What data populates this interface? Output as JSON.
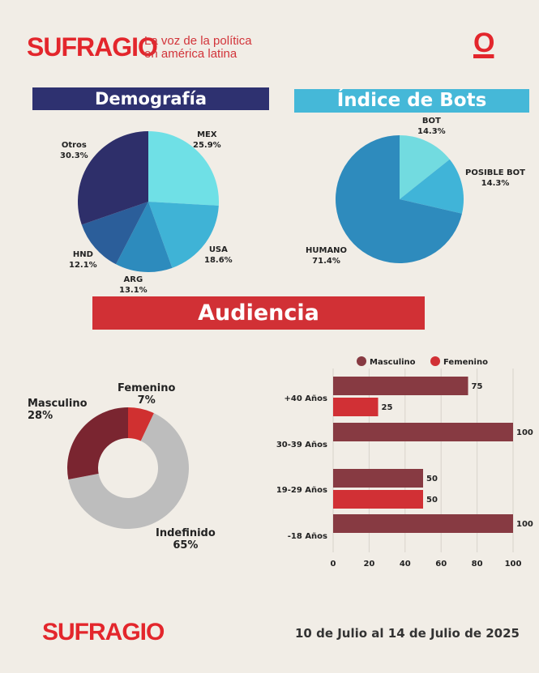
{
  "header": {
    "brand": "SUFRAGIO",
    "tagline_1": "La voz de la política",
    "tagline_2": "en américa latina",
    "mark": "O"
  },
  "footer": {
    "brand": "SUFRAGIO",
    "date": "10 de Julio al 14 de Julio de 2025"
  },
  "colors": {
    "red": "#e3262c",
    "navy": "#2e3170",
    "cyan": "#45b8d8",
    "masc": "#873a42",
    "fem": "#d13035"
  },
  "chart_data": [
    {
      "type": "pie",
      "title": "Demografía",
      "categories": [
        "MEX",
        "USA",
        "ARG",
        "HND",
        "Otros"
      ],
      "values": [
        25.9,
        18.6,
        13.1,
        12.1,
        30.3
      ],
      "labels": [
        "25.9%",
        "18.6%",
        "13.1%",
        "12.1%",
        "30.3%"
      ],
      "colors": [
        "#6fe0e6",
        "#3fb3d6",
        "#2d8bbd",
        "#2b5e9a",
        "#2e2f6a"
      ]
    },
    {
      "type": "pie",
      "title": "Índice de Bots",
      "categories": [
        "BOT",
        "POSIBLE BOT",
        "HUMANO"
      ],
      "values": [
        14.3,
        14.3,
        71.4
      ],
      "labels": [
        "14.3%",
        "14.3%",
        "71.4%"
      ],
      "colors": [
        "#72dbe0",
        "#40b4d8",
        "#2e8bbd"
      ]
    },
    {
      "type": "pie",
      "subtype": "donut",
      "title": "Audiencia",
      "categories": [
        "Femenino",
        "Indefinido",
        "Masculino"
      ],
      "values": [
        7,
        65,
        28
      ],
      "labels": [
        "7%",
        "65%",
        "28%"
      ],
      "colors": [
        "#d03030",
        "#bdbdbd",
        "#7a2530"
      ]
    },
    {
      "type": "bar",
      "orientation": "horizontal",
      "categories": [
        "+40 Años",
        "30-39 Años",
        "19-29 Años",
        "-18 Años"
      ],
      "series": [
        {
          "name": "Masculino",
          "values": [
            75,
            100,
            50,
            100
          ]
        },
        {
          "name": "Femenino",
          "values": [
            25,
            null,
            50,
            null
          ]
        }
      ],
      "xlim": [
        0,
        100
      ],
      "xticks": [
        "0",
        "20",
        "40",
        "60",
        "80",
        "100"
      ],
      "legend": "top",
      "grid": true
    }
  ]
}
